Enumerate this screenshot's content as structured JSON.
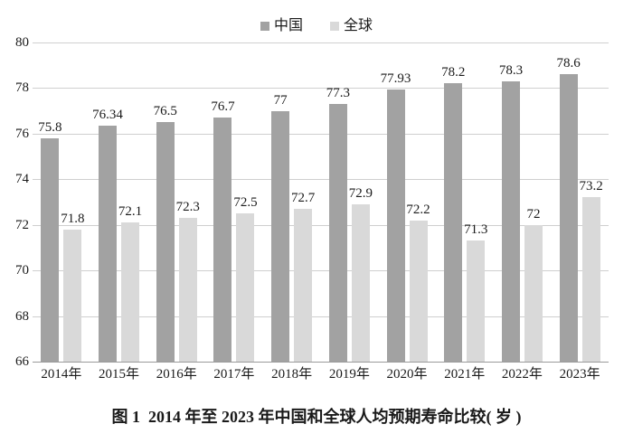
{
  "caption": "图 1  2014 年至 2023 年中国和全球人均预期寿命比较( 岁 )",
  "colors": {
    "china_bar": "#a2a2a2",
    "global_bar": "#d9d9d9",
    "gridline": "#cfcfcf",
    "axis_line": "#9a9a9a",
    "text": "#1a1a1a",
    "background": "#ffffff"
  },
  "chart_data": {
    "type": "bar",
    "title": "",
    "xlabel": "",
    "ylabel": "",
    "categories": [
      "2014年",
      "2015年",
      "2016年",
      "2017年",
      "2018年",
      "2019年",
      "2020年",
      "2021年",
      "2022年",
      "2023年"
    ],
    "series": [
      {
        "name": "中国",
        "color": "#a2a2a2",
        "values": [
          75.8,
          76.34,
          76.5,
          76.7,
          77,
          77.3,
          77.93,
          78.2,
          78.3,
          78.6
        ]
      },
      {
        "name": "全球",
        "color": "#d9d9d9",
        "values": [
          71.8,
          72.1,
          72.3,
          72.5,
          72.7,
          72.9,
          72.2,
          71.3,
          72,
          73.2
        ]
      }
    ],
    "ylim": [
      66,
      80
    ],
    "ytick_step": 2,
    "yticks": [
      66,
      68,
      70,
      72,
      74,
      76,
      78,
      80
    ],
    "grid": true,
    "legend_position": "top",
    "value_labels": true
  }
}
